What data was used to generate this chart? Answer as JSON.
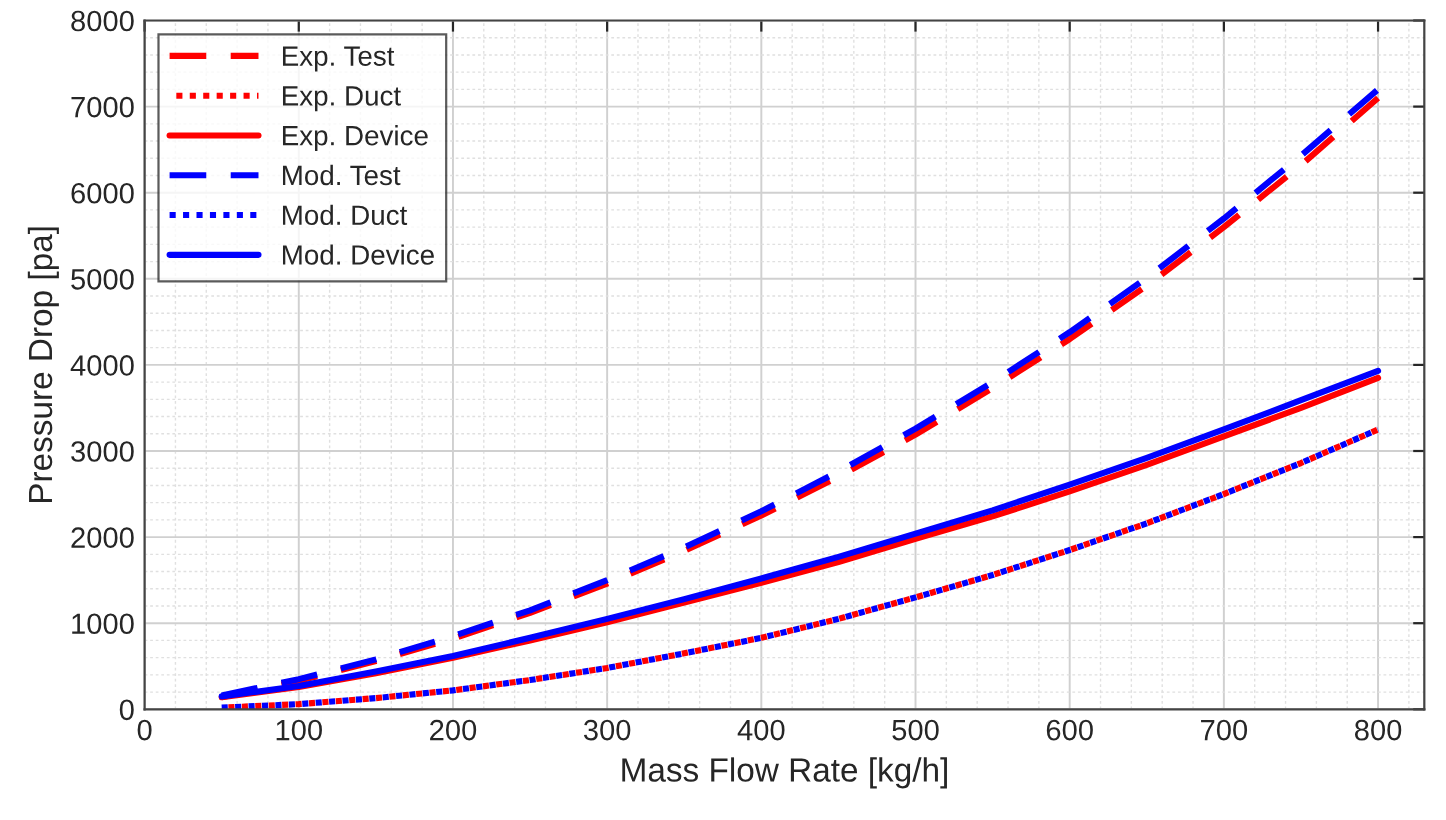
{
  "chart_data": {
    "type": "line",
    "xlabel": "Mass Flow Rate [kg/h]",
    "ylabel": "Pressure Drop [pa]",
    "x": [
      50,
      100,
      150,
      200,
      250,
      300,
      350,
      400,
      450,
      500,
      550,
      600,
      650,
      700,
      750,
      800
    ],
    "xlim": [
      0,
      830
    ],
    "xticks": [
      0,
      100,
      200,
      300,
      400,
      500,
      600,
      700,
      800
    ],
    "ylim": [
      0,
      8000
    ],
    "yticks": [
      0,
      1000,
      2000,
      3000,
      4000,
      5000,
      6000,
      7000,
      8000
    ],
    "grid": true,
    "legend": "top left",
    "marker": "none",
    "series": [
      {
        "name": "Exp. Test",
        "color": "#ff0000",
        "line_style": "dashed",
        "values": [
          140,
          330,
          560,
          820,
          1120,
          1460,
          1840,
          2250,
          2700,
          3190,
          3730,
          4300,
          4920,
          5600,
          6320,
          7100
        ]
      },
      {
        "name": "Exp. Duct",
        "color": "#ff0000",
        "line_style": "dotted",
        "values": [
          20,
          60,
          130,
          220,
          340,
          480,
          650,
          830,
          1050,
          1300,
          1560,
          1850,
          2160,
          2500,
          2860,
          3250
        ]
      },
      {
        "name": "Exp. Device",
        "color": "#ff0000",
        "line_style": "solid",
        "values": [
          140,
          260,
          420,
          600,
          800,
          1010,
          1240,
          1470,
          1710,
          1980,
          2240,
          2530,
          2840,
          3170,
          3500,
          3850
        ]
      },
      {
        "name": "Mod. Test",
        "color": "#0000ff",
        "line_style": "dashed",
        "values": [
          160,
          350,
          580,
          850,
          1150,
          1500,
          1880,
          2300,
          2760,
          3260,
          3800,
          4380,
          5010,
          5700,
          6430,
          7200
        ]
      },
      {
        "name": "Mod. Duct",
        "color": "#0000ff",
        "line_style": "dotted",
        "values": [
          20,
          60,
          130,
          220,
          340,
          480,
          650,
          830,
          1050,
          1300,
          1560,
          1850,
          2160,
          2500,
          2860,
          3250
        ]
      },
      {
        "name": "Mod. Device",
        "color": "#0000ff",
        "line_style": "solid",
        "values": [
          150,
          270,
          440,
          620,
          830,
          1050,
          1280,
          1520,
          1770,
          2040,
          2310,
          2610,
          2920,
          3250,
          3590,
          3930
        ]
      }
    ]
  }
}
